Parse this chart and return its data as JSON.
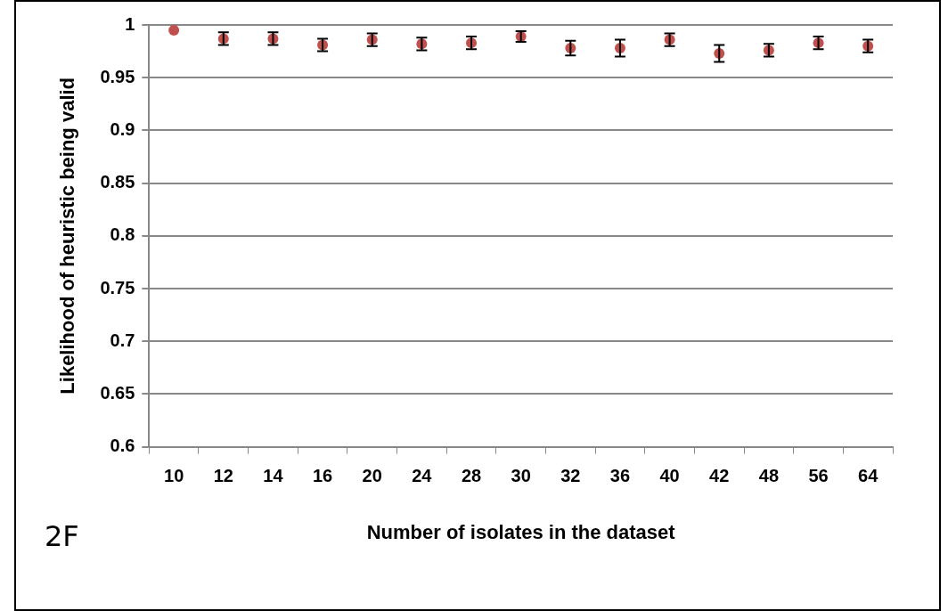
{
  "chart_data": {
    "type": "scatter",
    "categories": [
      "10",
      "12",
      "14",
      "16",
      "20",
      "24",
      "28",
      "30",
      "32",
      "36",
      "40",
      "42",
      "48",
      "56",
      "64"
    ],
    "series": [
      {
        "color": "#c0504d",
        "values": [
          0.995,
          0.987,
          0.987,
          0.981,
          0.986,
          0.982,
          0.983,
          0.989,
          0.978,
          0.978,
          0.986,
          0.973,
          0.976,
          0.983,
          0.98
        ],
        "errors": [
          null,
          0.006,
          0.006,
          0.006,
          0.006,
          0.006,
          0.006,
          0.005,
          0.007,
          0.008,
          0.006,
          0.008,
          0.006,
          0.006,
          0.006
        ]
      }
    ],
    "ylim": [
      0.6,
      1
    ],
    "yticks": [
      0.6,
      0.65,
      0.7,
      0.75,
      0.8,
      0.85,
      0.9,
      0.95,
      1
    ],
    "xlabel": "Number of isolates in the dataset",
    "ylabel": "Likelihood of heuristic being valid",
    "annotations": [
      "2F"
    ],
    "grid": "y",
    "marker": "circle",
    "legend": false
  }
}
